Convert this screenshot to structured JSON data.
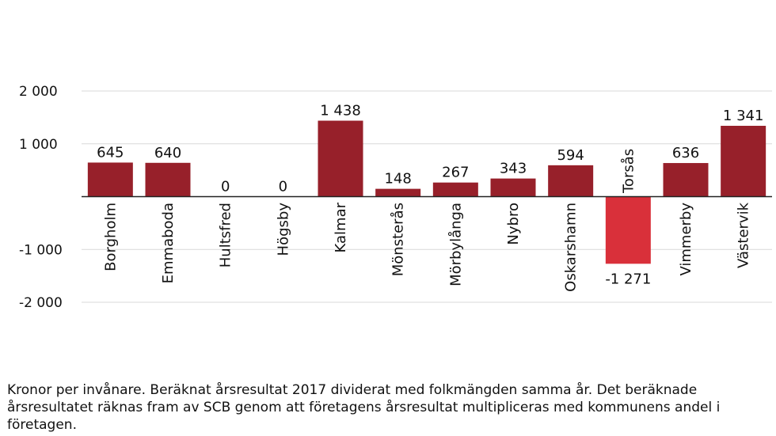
{
  "chart_data": {
    "type": "bar",
    "categories": [
      "Borgholm",
      "Emmaboda",
      "Hultsfred",
      "Högsby",
      "Kalmar",
      "Mönsterås",
      "Mörbylånga",
      "Nybro",
      "Oskarshamn",
      "Torsås",
      "Vimmerby",
      "Västervik"
    ],
    "values": [
      645,
      640,
      0,
      0,
      1438,
      148,
      267,
      343,
      594,
      -1271,
      636,
      1341
    ],
    "value_labels": [
      "645",
      "640",
      "0",
      "0",
      "1 438",
      "148",
      "267",
      "343",
      "594",
      "-1 271",
      "636",
      "1 341"
    ],
    "ylim": [
      -2000,
      2000
    ],
    "yticks": [
      2000,
      1000,
      -1000,
      -2000
    ],
    "ytick_labels": [
      "2 000",
      "1 000",
      "-1 000",
      "-2 000"
    ],
    "grid": true,
    "colors": {
      "positive": "#97202a",
      "negative": "#d9303a",
      "grid": "#d9d9d9",
      "axis": "#222222"
    }
  },
  "caption": "Kronor per invånare. Beräknat årsresultat 2017 dividerat med folkmängden samma år. Det beräknade årsresultatet räknas fram av SCB genom att företagens årsresultat multipliceras med kommunens andel i företagen."
}
